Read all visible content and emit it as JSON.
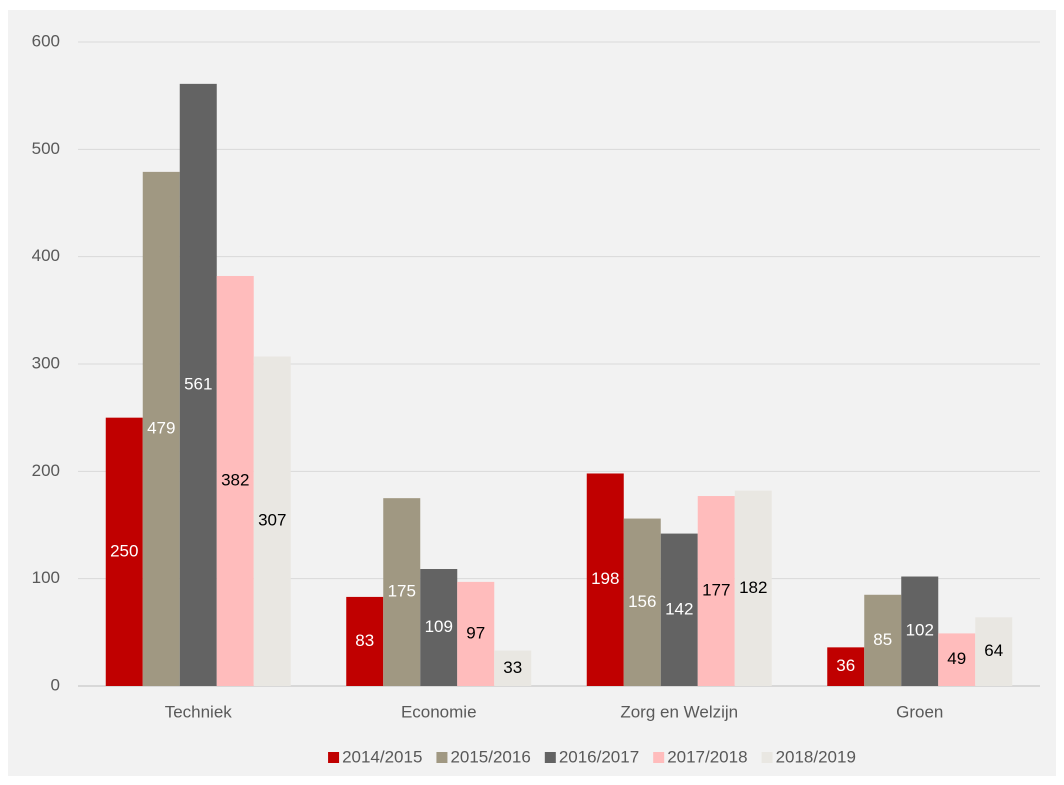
{
  "chart_data": {
    "type": "bar",
    "categories": [
      "Techniek",
      "Economie",
      "Zorg en Welzijn",
      "Groen"
    ],
    "series": [
      {
        "name": "2014/2015",
        "color": "#c00000",
        "values": [
          250,
          83,
          198,
          36
        ]
      },
      {
        "name": "2015/2016",
        "color": "#a09882",
        "values": [
          479,
          175,
          156,
          85
        ]
      },
      {
        "name": "2016/2017",
        "color": "#636363",
        "values": [
          561,
          109,
          142,
          102
        ]
      },
      {
        "name": "2017/2018",
        "color": "#ffbcbc",
        "values": [
          382,
          97,
          177,
          49
        ]
      },
      {
        "name": "2018/2019",
        "color": "#e9e7e2",
        "values": [
          307,
          33,
          182,
          64
        ]
      }
    ],
    "ylim": [
      0,
      600
    ],
    "yticks": [
      0,
      100,
      200,
      300,
      400,
      500,
      600
    ],
    "grid": true,
    "legend": "bottom"
  }
}
